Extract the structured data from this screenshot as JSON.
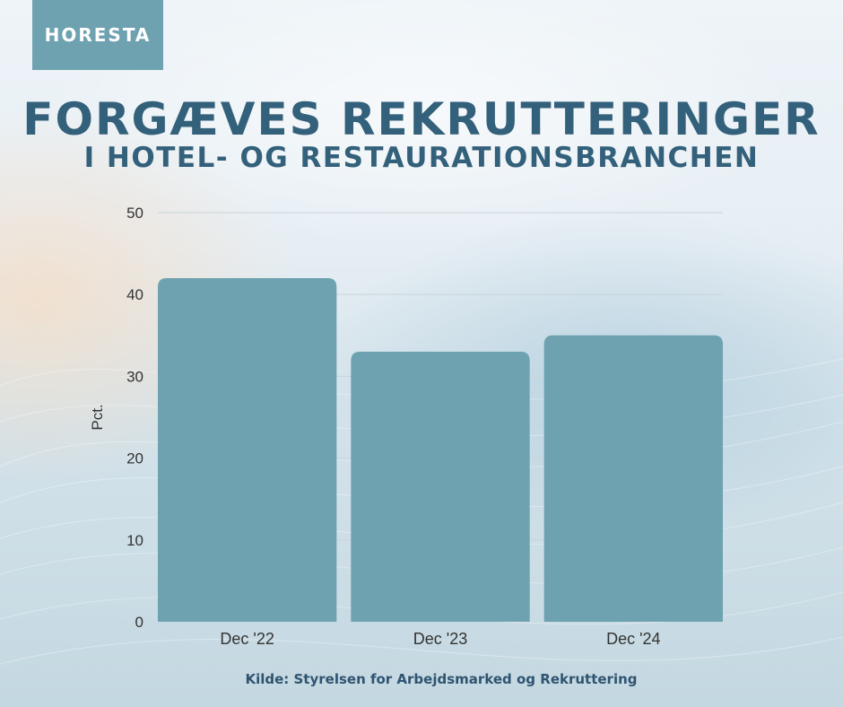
{
  "logo": {
    "text": "HORESTA"
  },
  "header": {
    "title": "FORGÆVES REKRUTTERINGER",
    "subtitle": "I HOTEL- OG RESTAURATIONSBRANCHEN"
  },
  "colors": {
    "bar": "#6ea2b1",
    "title": "#33607a",
    "logo_bg": "#6ea2b1",
    "axis_text": "#333333"
  },
  "chart_data": {
    "type": "bar",
    "title": "FORGÆVES REKRUTTERINGER",
    "subtitle": "I HOTEL- OG RESTAURATIONSBRANCHEN",
    "categories": [
      "Dec '22",
      "Dec '23",
      "Dec '24"
    ],
    "values": [
      42,
      33,
      35
    ],
    "xlabel": "",
    "ylabel": "Pct.",
    "ylim": [
      0,
      50
    ],
    "yticks": [
      0,
      10,
      20,
      30,
      40,
      50
    ],
    "grid": true
  },
  "footer": {
    "source": "Kilde: Styrelsen for Arbejdsmarked og Rekruttering"
  }
}
